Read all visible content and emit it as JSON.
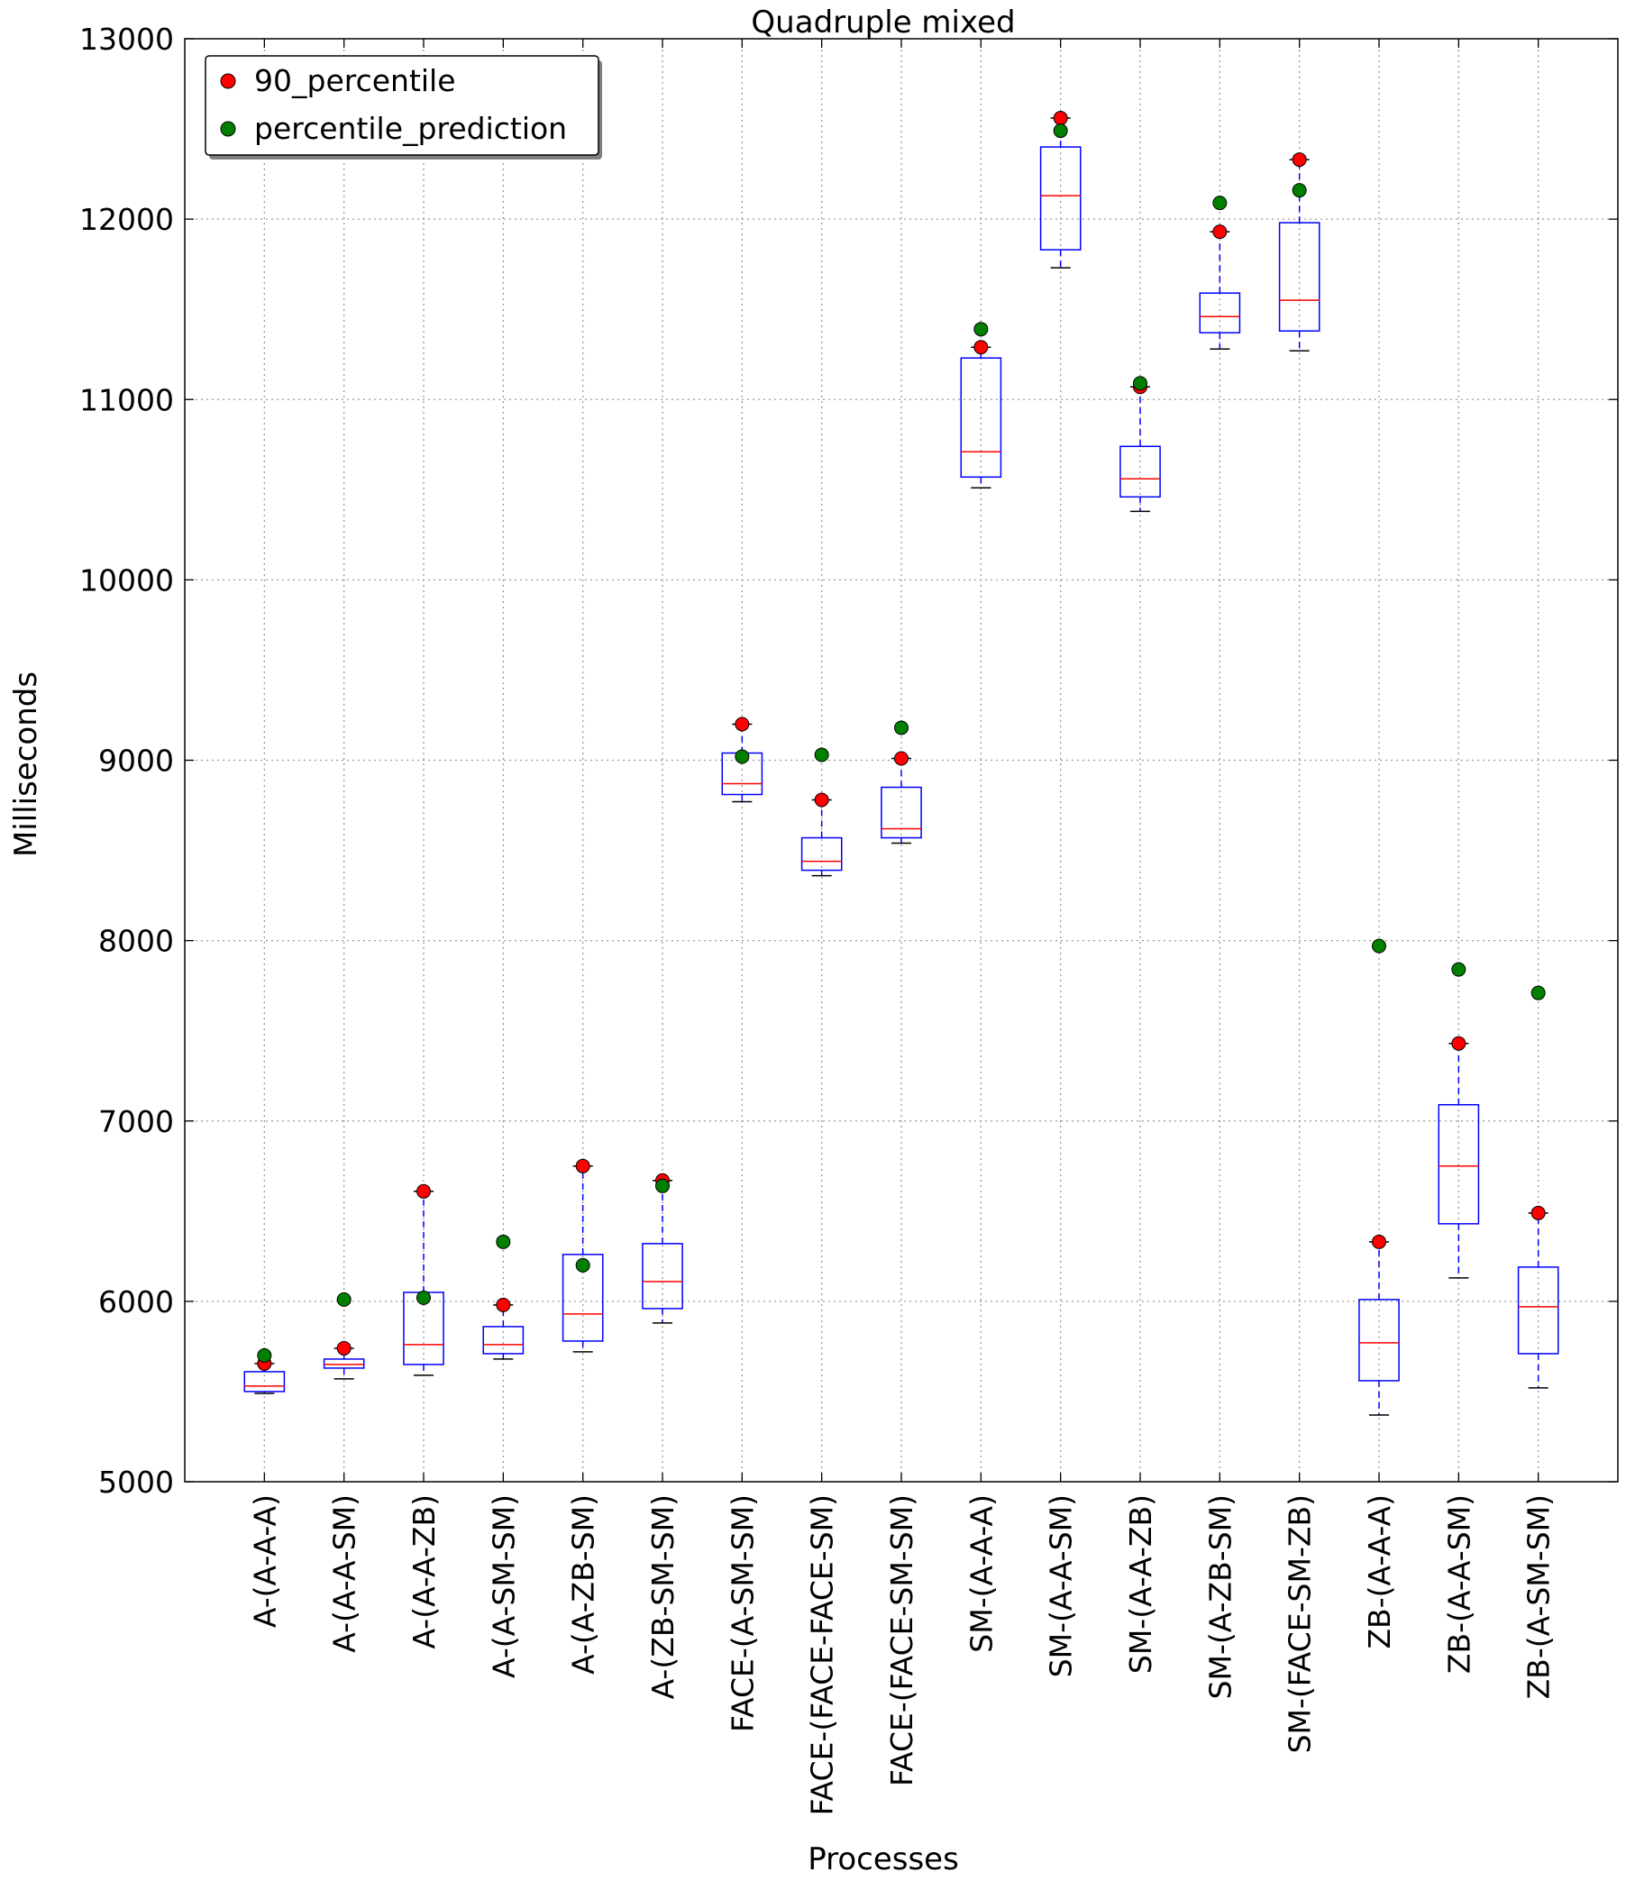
{
  "chart_data": {
    "type": "boxplot",
    "title": "Quadruple mixed",
    "xlabel": "Processes",
    "ylabel": "Milliseconds",
    "ylim": [
      5000,
      13000
    ],
    "yticks": [
      5000,
      6000,
      7000,
      8000,
      9000,
      10000,
      11000,
      12000,
      13000
    ],
    "grid": true,
    "legend_position": "top-left",
    "legend": [
      {
        "label": "90_percentile",
        "color": "#ff0000"
      },
      {
        "label": "percentile_prediction",
        "color": "#007f00"
      }
    ],
    "colors": {
      "box": "#0000ff",
      "median": "#ff0000",
      "cap": "#000000",
      "percentile": "#ff0000",
      "prediction": "#007f00"
    },
    "categories": [
      "A-(A-A-A)",
      "A-(A-A-SM)",
      "A-(A-A-ZB)",
      "A-(A-SM-SM)",
      "A-(A-ZB-SM)",
      "A-(ZB-SM-SM)",
      "FACE-(A-SM-SM)",
      "FACE-(FACE-FACE-SM)",
      "FACE-(FACE-SM-SM)",
      "SM-(A-A-A)",
      "SM-(A-A-SM)",
      "SM-(A-A-ZB)",
      "SM-(A-ZB-SM)",
      "SM-(FACE-SM-ZB)",
      "ZB-(A-A-A)",
      "ZB-(A-A-SM)",
      "ZB-(A-SM-SM)"
    ],
    "boxes": [
      {
        "whislo": 5490,
        "q1": 5500,
        "med": 5530,
        "q3": 5610,
        "whishi": 5655
      },
      {
        "whislo": 5570,
        "q1": 5630,
        "med": 5650,
        "q3": 5680,
        "whishi": 5740
      },
      {
        "whislo": 5590,
        "q1": 5650,
        "med": 5760,
        "q3": 6050,
        "whishi": 6610
      },
      {
        "whislo": 5680,
        "q1": 5710,
        "med": 5760,
        "q3": 5860,
        "whishi": 5980
      },
      {
        "whislo": 5720,
        "q1": 5780,
        "med": 5930,
        "q3": 6260,
        "whishi": 6750
      },
      {
        "whislo": 5880,
        "q1": 5960,
        "med": 6110,
        "q3": 6320,
        "whishi": 6670
      },
      {
        "whislo": 8770,
        "q1": 8810,
        "med": 8870,
        "q3": 9040,
        "whishi": 9200
      },
      {
        "whislo": 8360,
        "q1": 8390,
        "med": 8440,
        "q3": 8570,
        "whishi": 8780
      },
      {
        "whislo": 8540,
        "q1": 8570,
        "med": 8620,
        "q3": 8850,
        "whishi": 9010
      },
      {
        "whislo": 10510,
        "q1": 10570,
        "med": 10710,
        "q3": 11230,
        "whishi": 11290
      },
      {
        "whislo": 11730,
        "q1": 11830,
        "med": 12130,
        "q3": 12400,
        "whishi": 12560
      },
      {
        "whislo": 10380,
        "q1": 10460,
        "med": 10560,
        "q3": 10740,
        "whishi": 11070
      },
      {
        "whislo": 11280,
        "q1": 11370,
        "med": 11460,
        "q3": 11590,
        "whishi": 11930
      },
      {
        "whislo": 11270,
        "q1": 11380,
        "med": 11550,
        "q3": 11980,
        "whishi": 12330
      },
      {
        "whislo": 5370,
        "q1": 5560,
        "med": 5770,
        "q3": 6010,
        "whishi": 6330
      },
      {
        "whislo": 6130,
        "q1": 6430,
        "med": 6750,
        "q3": 7090,
        "whishi": 7430
      },
      {
        "whislo": 5520,
        "q1": 5710,
        "med": 5970,
        "q3": 6190,
        "whishi": 6490
      }
    ],
    "series": [
      {
        "name": "90_percentile",
        "values": [
          5655,
          5740,
          6610,
          5980,
          6750,
          6670,
          9200,
          8780,
          9010,
          11290,
          12560,
          11070,
          11930,
          12330,
          6330,
          7430,
          6490
        ]
      },
      {
        "name": "percentile_prediction",
        "values": [
          5700,
          6010,
          6020,
          6330,
          6200,
          6640,
          9020,
          9030,
          9180,
          11390,
          12490,
          11090,
          12090,
          12160,
          7970,
          7840,
          7710
        ]
      }
    ]
  }
}
